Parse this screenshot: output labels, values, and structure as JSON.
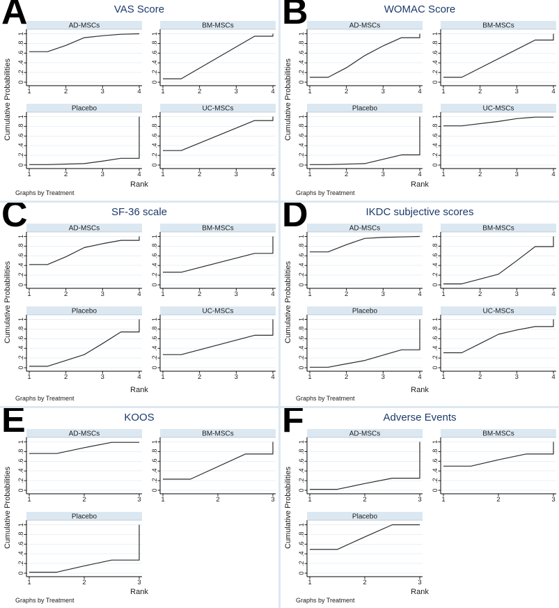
{
  "figure": {
    "ylabel": "Cumulative Probabilities",
    "xlabel": "Rank",
    "note": "Graphs by Treatment"
  },
  "axis": {
    "ylim": [
      0,
      1
    ],
    "y_tick_values": [
      0,
      0.2,
      0.4,
      0.6,
      0.8,
      1
    ],
    "y_tick_labels": [
      "0",
      ".2",
      ".4",
      ".6",
      ".8",
      "1"
    ],
    "grid": "horizontal"
  },
  "colors": {
    "title_navy": "#1b3a6b",
    "header_bg": "#dce8f1",
    "header_border": "#b3c2ce",
    "grid_line": "#e9f0f6",
    "axis_line": "#000000",
    "data_line": "#2b2b2b",
    "panel_gap": "#dce8f1",
    "text": "#1a1a1a"
  },
  "chart_data": {
    "type": "line",
    "subtype": "cumulative-probability-by-rank",
    "legend_position": "none",
    "panels": [
      {
        "letter": "A",
        "title": "VAS Score",
        "xlim": [
          1,
          4
        ],
        "x_ticks": [
          "1",
          "2",
          "3",
          "4"
        ],
        "subplots": [
          {
            "treatment": "AD-MSCs",
            "points": [
              [
                1,
                0.63
              ],
              [
                1.5,
                0.63
              ],
              [
                2,
                0.76
              ],
              [
                2.5,
                0.92
              ],
              [
                3,
                0.96
              ],
              [
                3.5,
                0.99
              ],
              [
                4,
                1.0
              ]
            ]
          },
          {
            "treatment": "BM-MSCs",
            "points": [
              [
                1,
                0.07
              ],
              [
                1.5,
                0.07
              ],
              [
                3.5,
                0.95
              ],
              [
                4,
                0.95
              ],
              [
                4,
                1.0
              ]
            ]
          },
          {
            "treatment": "Placebo",
            "points": [
              [
                1,
                0.01
              ],
              [
                1.5,
                0.01
              ],
              [
                2.5,
                0.03
              ],
              [
                3,
                0.08
              ],
              [
                3.5,
                0.14
              ],
              [
                4,
                0.14
              ],
              [
                4,
                1.0
              ]
            ]
          },
          {
            "treatment": "UC-MSCs",
            "points": [
              [
                1,
                0.3
              ],
              [
                1.5,
                0.3
              ],
              [
                3.5,
                0.92
              ],
              [
                4,
                0.92
              ],
              [
                4,
                1.0
              ]
            ]
          }
        ]
      },
      {
        "letter": "B",
        "title": "WOMAC Score",
        "xlim": [
          1,
          4
        ],
        "x_ticks": [
          "1",
          "2",
          "3",
          "4"
        ],
        "subplots": [
          {
            "treatment": "AD-MSCs",
            "points": [
              [
                1,
                0.1
              ],
              [
                1.5,
                0.1
              ],
              [
                2,
                0.3
              ],
              [
                2.5,
                0.55
              ],
              [
                3,
                0.75
              ],
              [
                3.5,
                0.92
              ],
              [
                4,
                0.92
              ],
              [
                4,
                1.0
              ]
            ]
          },
          {
            "treatment": "BM-MSCs",
            "points": [
              [
                1,
                0.1
              ],
              [
                1.5,
                0.1
              ],
              [
                3.5,
                0.87
              ],
              [
                4,
                0.87
              ],
              [
                4,
                1.0
              ]
            ]
          },
          {
            "treatment": "Placebo",
            "points": [
              [
                1,
                0.01
              ],
              [
                1.5,
                0.01
              ],
              [
                2.5,
                0.03
              ],
              [
                3,
                0.12
              ],
              [
                3.5,
                0.21
              ],
              [
                4,
                0.21
              ],
              [
                4,
                1.0
              ]
            ]
          },
          {
            "treatment": "UC-MSCs",
            "points": [
              [
                1,
                0.81
              ],
              [
                1.5,
                0.81
              ],
              [
                2.5,
                0.9
              ],
              [
                3,
                0.96
              ],
              [
                3.5,
                0.99
              ],
              [
                4,
                0.99
              ]
            ]
          }
        ]
      },
      {
        "letter": "C",
        "title": "SF-36 scale",
        "xlim": [
          1,
          4
        ],
        "x_ticks": [
          "1",
          "2",
          "3",
          "4"
        ],
        "subplots": [
          {
            "treatment": "AD-MSCs",
            "points": [
              [
                1,
                0.42
              ],
              [
                1.5,
                0.42
              ],
              [
                2,
                0.58
              ],
              [
                2.5,
                0.77
              ],
              [
                3,
                0.85
              ],
              [
                3.5,
                0.92
              ],
              [
                4,
                0.92
              ],
              [
                4,
                1.0
              ]
            ]
          },
          {
            "treatment": "BM-MSCs",
            "points": [
              [
                1,
                0.26
              ],
              [
                1.5,
                0.26
              ],
              [
                3.5,
                0.65
              ],
              [
                4,
                0.65
              ],
              [
                4,
                1.0
              ]
            ]
          },
          {
            "treatment": "Placebo",
            "points": [
              [
                1,
                0.03
              ],
              [
                1.5,
                0.03
              ],
              [
                2,
                0.15
              ],
              [
                2.5,
                0.27
              ],
              [
                3,
                0.5
              ],
              [
                3.5,
                0.74
              ],
              [
                4,
                0.74
              ],
              [
                4,
                1.0
              ]
            ]
          },
          {
            "treatment": "UC-MSCs",
            "points": [
              [
                1,
                0.27
              ],
              [
                1.5,
                0.27
              ],
              [
                3.5,
                0.67
              ],
              [
                4,
                0.67
              ],
              [
                4,
                1.0
              ]
            ]
          }
        ]
      },
      {
        "letter": "D",
        "title": "IKDC subjective scores",
        "xlim": [
          1,
          4
        ],
        "x_ticks": [
          "1",
          "2",
          "3",
          "4"
        ],
        "subplots": [
          {
            "treatment": "AD-MSCs",
            "points": [
              [
                1,
                0.68
              ],
              [
                1.5,
                0.68
              ],
              [
                2,
                0.83
              ],
              [
                2.5,
                0.96
              ],
              [
                3,
                0.98
              ],
              [
                3.5,
                0.99
              ],
              [
                4,
                1.0
              ]
            ]
          },
          {
            "treatment": "BM-MSCs",
            "points": [
              [
                1,
                0.02
              ],
              [
                1.5,
                0.02
              ],
              [
                2,
                0.12
              ],
              [
                2.5,
                0.22
              ],
              [
                3,
                0.5
              ],
              [
                3.5,
                0.79
              ],
              [
                4,
                0.79
              ],
              [
                4,
                1.0
              ]
            ]
          },
          {
            "treatment": "Placebo",
            "points": [
              [
                1,
                0.01
              ],
              [
                1.5,
                0.01
              ],
              [
                2,
                0.08
              ],
              [
                2.5,
                0.15
              ],
              [
                3,
                0.26
              ],
              [
                3.5,
                0.37
              ],
              [
                4,
                0.37
              ],
              [
                4,
                1.0
              ]
            ]
          },
          {
            "treatment": "UC-MSCs",
            "points": [
              [
                1,
                0.31
              ],
              [
                1.5,
                0.31
              ],
              [
                2,
                0.5
              ],
              [
                2.5,
                0.69
              ],
              [
                3,
                0.78
              ],
              [
                3.5,
                0.85
              ],
              [
                4,
                0.85
              ],
              [
                4,
                1.0
              ]
            ]
          }
        ]
      },
      {
        "letter": "E",
        "title": "KOOS",
        "xlim": [
          1,
          3
        ],
        "x_ticks": [
          "1",
          "2",
          "3"
        ],
        "subplots": [
          {
            "treatment": "AD-MSCs",
            "points": [
              [
                1,
                0.76
              ],
              [
                1.5,
                0.76
              ],
              [
                2,
                0.88
              ],
              [
                2.5,
                0.99
              ],
              [
                3,
                0.99
              ]
            ]
          },
          {
            "treatment": "BM-MSCs",
            "points": [
              [
                1,
                0.23
              ],
              [
                1.5,
                0.23
              ],
              [
                2.5,
                0.75
              ],
              [
                3,
                0.75
              ],
              [
                3,
                1.0
              ]
            ]
          },
          {
            "treatment": "Placebo",
            "points": [
              [
                1,
                0.02
              ],
              [
                1.5,
                0.02
              ],
              [
                2,
                0.15
              ],
              [
                2.5,
                0.27
              ],
              [
                3,
                0.27
              ],
              [
                3,
                1.0
              ]
            ]
          }
        ]
      },
      {
        "letter": "F",
        "title": "Adverse Events",
        "xlim": [
          1,
          3
        ],
        "x_ticks": [
          "1",
          "2",
          "3"
        ],
        "subplots": [
          {
            "treatment": "AD-MSCs",
            "points": [
              [
                1,
                0.02
              ],
              [
                1.5,
                0.02
              ],
              [
                2,
                0.14
              ],
              [
                2.5,
                0.25
              ],
              [
                3,
                0.25
              ],
              [
                3,
                1.0
              ]
            ]
          },
          {
            "treatment": "BM-MSCs",
            "points": [
              [
                1,
                0.5
              ],
              [
                1.5,
                0.5
              ],
              [
                2,
                0.63
              ],
              [
                2.5,
                0.75
              ],
              [
                3,
                0.75
              ],
              [
                3,
                1.0
              ]
            ]
          },
          {
            "treatment": "Placebo",
            "points": [
              [
                1,
                0.49
              ],
              [
                1.5,
                0.49
              ],
              [
                2,
                0.75
              ],
              [
                2.5,
                1.0
              ],
              [
                3,
                1.0
              ]
            ]
          }
        ]
      }
    ]
  }
}
